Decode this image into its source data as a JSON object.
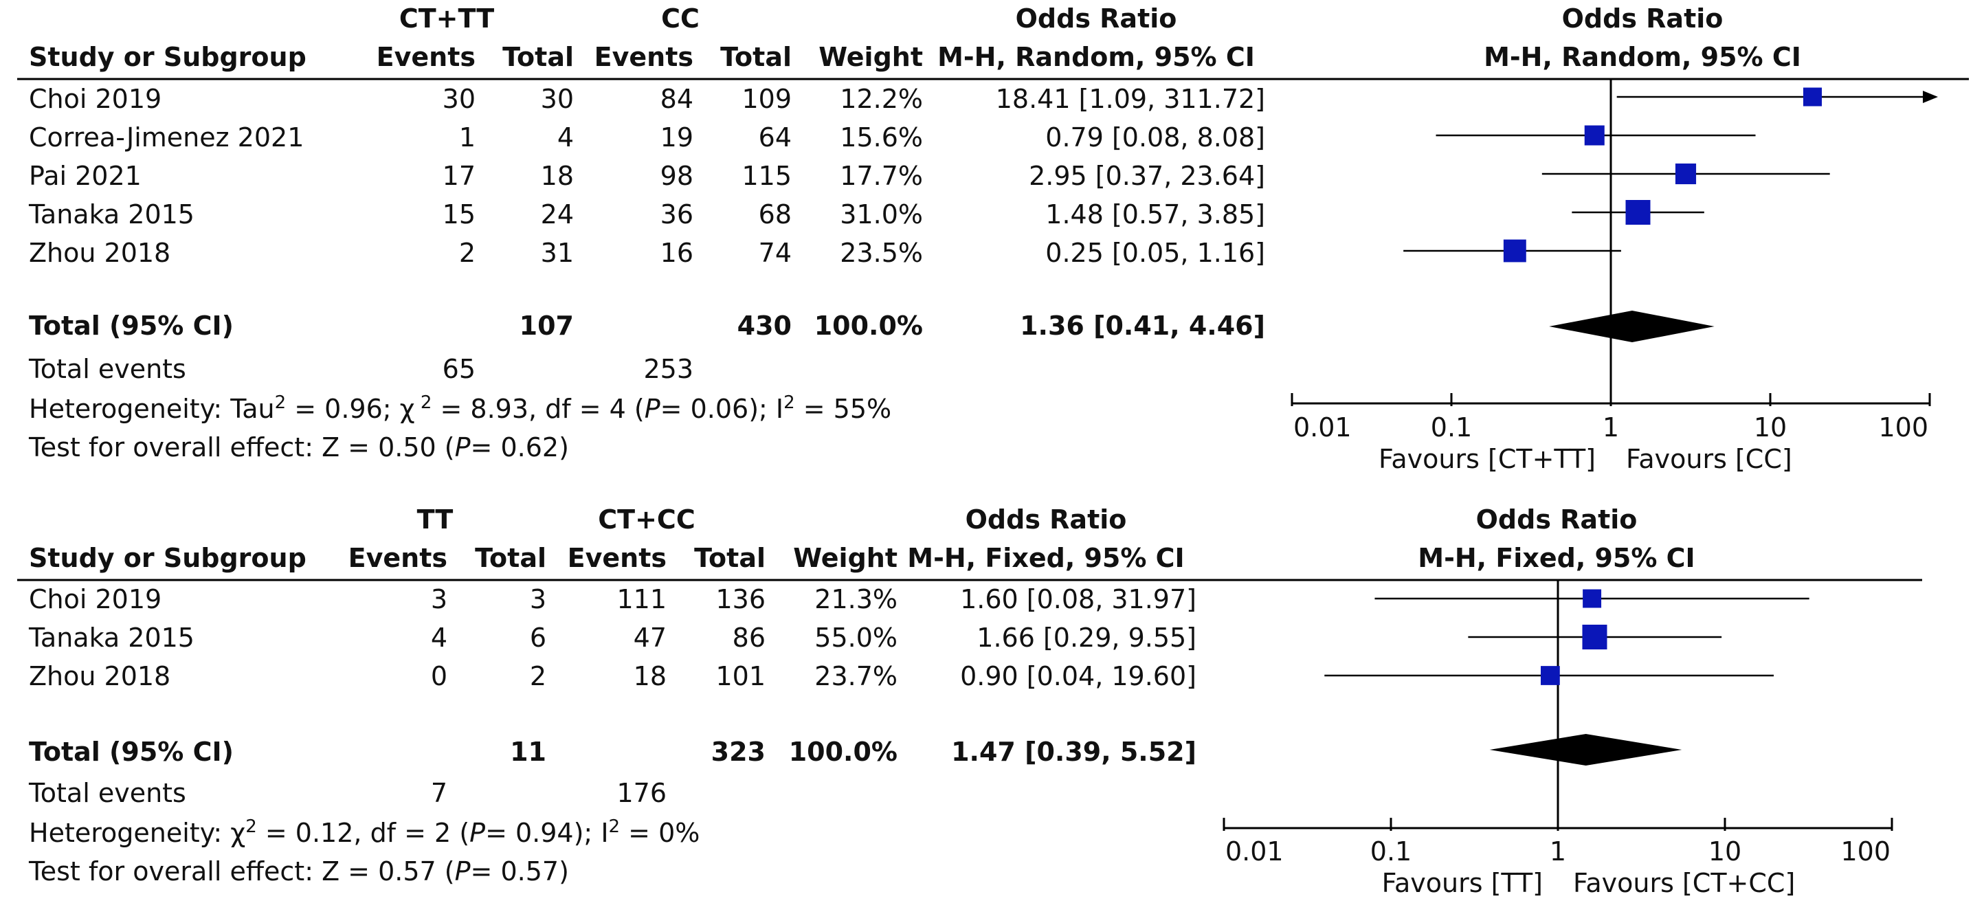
{
  "chart_data": [
    {
      "type": "forest",
      "model": "M-H, Random, 95% CI",
      "group1_label": "CT+TT",
      "group2_label": "CC",
      "col_headers": {
        "study": "Study or Subgroup",
        "events": "Events",
        "total": "Total",
        "weight": "Weight",
        "or_title": "Odds Ratio",
        "or_sub": "M-H, Random, 95% CI"
      },
      "studies": [
        {
          "name": "Choi 2019",
          "e1": "30",
          "n1": "30",
          "e2": "84",
          "n2": "109",
          "weight": "12.2%",
          "ci_text": "18.41 [1.09, 311.72]",
          "or": 18.41,
          "lo": 1.09,
          "hi": 311.72
        },
        {
          "name": "Correa-Jimenez 2021",
          "e1": "1",
          "n1": "4",
          "e2": "19",
          "n2": "64",
          "weight": "15.6%",
          "ci_text": "0.79 [0.08, 8.08]",
          "or": 0.79,
          "lo": 0.08,
          "hi": 8.08
        },
        {
          "name": "Pai 2021",
          "e1": "17",
          "n1": "18",
          "e2": "98",
          "n2": "115",
          "weight": "17.7%",
          "ci_text": "2.95 [0.37, 23.64]",
          "or": 2.95,
          "lo": 0.37,
          "hi": 23.64
        },
        {
          "name": "Tanaka 2015",
          "e1": "15",
          "n1": "24",
          "e2": "36",
          "n2": "68",
          "weight": "31.0%",
          "ci_text": "1.48 [0.57, 3.85]",
          "or": 1.48,
          "lo": 0.57,
          "hi": 3.85
        },
        {
          "name": "Zhou 2018",
          "e1": "2",
          "n1": "31",
          "e2": "16",
          "n2": "74",
          "weight": "23.5%",
          "ci_text": "0.25 [0.05, 1.16]",
          "or": 0.25,
          "lo": 0.05,
          "hi": 1.16
        }
      ],
      "total": {
        "label": "Total (95% CI)",
        "n1": "107",
        "n2": "430",
        "weight": "100.0%",
        "ci_text": "1.36 [0.41, 4.46]",
        "or": 1.36,
        "lo": 0.41,
        "hi": 4.46
      },
      "total_events": {
        "label": "Total events",
        "e1": "65",
        "e2": "253"
      },
      "heterogeneity": {
        "prefix": "Heterogeneity: Tau",
        "tau2": "2",
        "tau_value": " = 0.96;   ",
        "chi": "χ",
        "chi_sup": " 2",
        "chi_value": " = 8.93, df = 4 (",
        "p_label": "P",
        "p_value": "= 0.06); ",
        "i": "I",
        "i_sup": "2",
        "i_value": " = 55%"
      },
      "overall": {
        "text": "Test for overall effect: Z = 0.50 (",
        "p_label": "P",
        "p_value": "= 0.62)"
      },
      "axis": {
        "ticks": [
          "0.01",
          "0.1",
          "1",
          "10",
          "100"
        ],
        "tick_values": [
          0.01,
          0.1,
          1,
          10,
          100
        ],
        "xlim": [
          0.01,
          100
        ],
        "scale": "log"
      },
      "favours_left": "Favours [CT+TT]",
      "favours_right": "Favours [CC]"
    },
    {
      "type": "forest",
      "model": "M-H, Fixed, 95% CI",
      "group1_label": "TT",
      "group2_label": "CT+CC",
      "col_headers": {
        "study": "Study or Subgroup",
        "events": "Events",
        "total": "Total",
        "weight": "Weight",
        "or_title": "Odds Ratio",
        "or_sub": "M-H, Fixed, 95% CI"
      },
      "studies": [
        {
          "name": "Choi 2019",
          "e1": "3",
          "n1": "3",
          "e2": "111",
          "n2": "136",
          "weight": "21.3%",
          "ci_text": "1.60 [0.08, 31.97]",
          "or": 1.6,
          "lo": 0.08,
          "hi": 31.97
        },
        {
          "name": "Tanaka 2015",
          "e1": "4",
          "n1": "6",
          "e2": "47",
          "n2": "86",
          "weight": "55.0%",
          "ci_text": "1.66 [0.29, 9.55]",
          "or": 1.66,
          "lo": 0.29,
          "hi": 9.55
        },
        {
          "name": "Zhou 2018",
          "e1": "0",
          "n1": "2",
          "e2": "18",
          "n2": "101",
          "weight": "23.7%",
          "ci_text": "0.90 [0.04, 19.60]",
          "or": 0.9,
          "lo": 0.04,
          "hi": 19.6
        }
      ],
      "total": {
        "label": "Total (95% CI)",
        "n1": "11",
        "n2": "323",
        "weight": "100.0%",
        "ci_text": "1.47 [0.39, 5.52]",
        "or": 1.47,
        "lo": 0.39,
        "hi": 5.52
      },
      "total_events": {
        "label": "Total events",
        "e1": "7",
        "e2": "176"
      },
      "heterogeneity": {
        "prefix": "Heterogeneity:   ",
        "chi": "χ",
        "chi_sup": "2",
        "chi_value": " = 0.12, df = 2 (",
        "p_label": "P",
        "p_value": "= 0.94); ",
        "i": "I",
        "i_sup": "2",
        "i_value": " = 0%"
      },
      "overall": {
        "text": "Test for overall effect: Z = 0.57 (",
        "p_label": "P",
        "p_value": "= 0.57)"
      },
      "axis": {
        "ticks": [
          "0.01",
          "0.1",
          "1",
          "10",
          "100"
        ],
        "tick_values": [
          0.01,
          0.1,
          1,
          10,
          100
        ],
        "xlim": [
          0.01,
          100
        ],
        "scale": "log"
      },
      "favours_left": "Favours [TT]",
      "favours_right": "Favours [CT+CC]"
    }
  ],
  "colors": {
    "marker": "#0a16b8",
    "diamond": "#000000",
    "line": "#000000",
    "text": "#111111"
  }
}
